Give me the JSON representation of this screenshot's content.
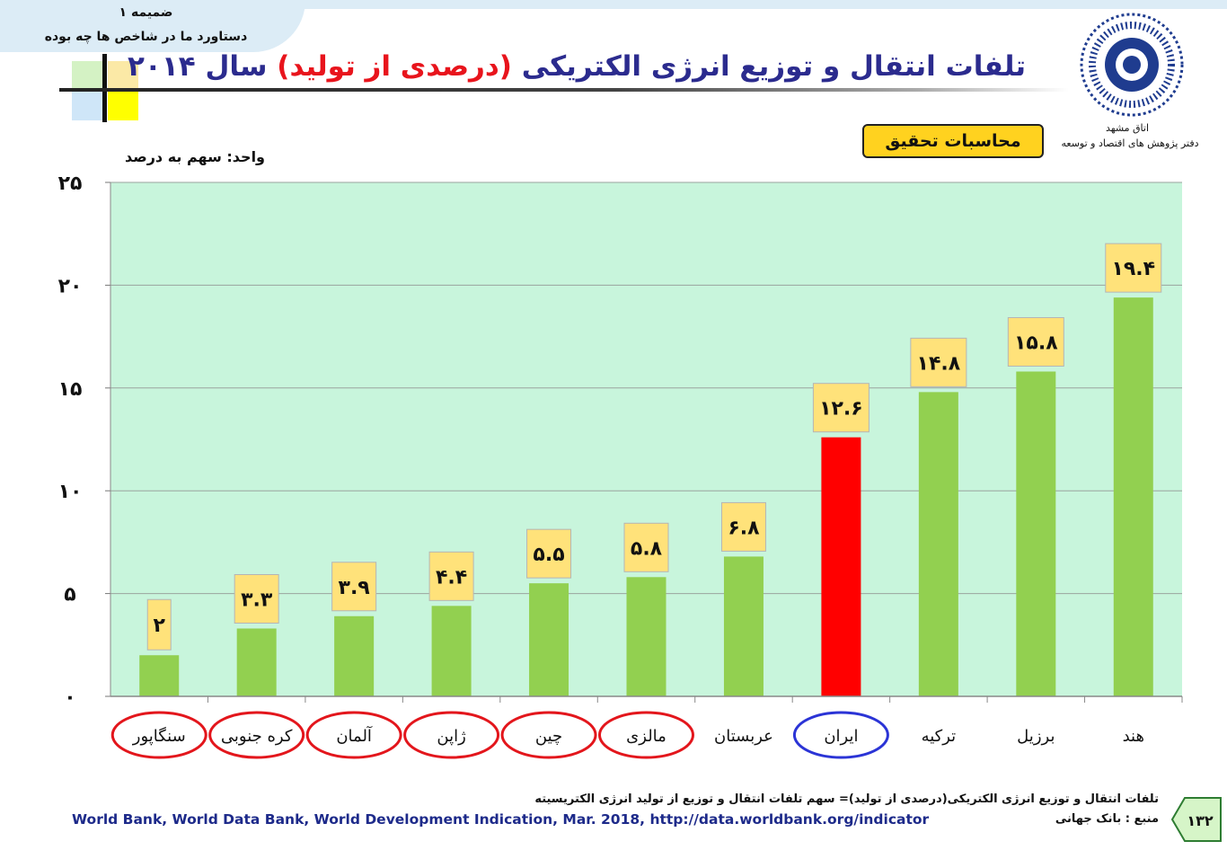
{
  "header": {
    "annex_title": "ضمیمه ۱",
    "annex_subtitle": "دستاورد ما در شاخص ها چه بوده",
    "title_parts": [
      {
        "text": "تلفات انتقال و توزیع انرژی الکتریکی ",
        "color": "#2b2b8e"
      },
      {
        "text": "(درصدی از تولید)",
        "color": "#e8141c"
      },
      {
        "text": " سال ۲۰۱۴",
        "color": "#2b2b8e"
      }
    ],
    "org_name": "اتاق مشهد",
    "org_dept": "دفتر پژوهش های اقتصاد و توسعه",
    "calc_badge": "محاسبات تحقیق"
  },
  "chart_data": {
    "type": "bar",
    "unit_label": "واحد: سهم به درصد",
    "categories": [
      "سنگاپور",
      "کره جنوبی",
      "آلمان",
      "ژاپن",
      "چین",
      "مالزی",
      "عربستان",
      "ایران",
      "ترکیه",
      "برزیل",
      "هند"
    ],
    "values": [
      2,
      3.3,
      3.9,
      4.4,
      5.5,
      5.8,
      6.8,
      12.6,
      14.8,
      15.8,
      19.4
    ],
    "value_labels": [
      "۲",
      "۳.۳",
      "۳.۹",
      "۴.۴",
      "۵.۵",
      "۵.۸",
      "۶.۸",
      "۱۲.۶",
      "۱۴.۸",
      "۱۵.۸",
      "۱۹.۴"
    ],
    "bar_colors": [
      "#92d050",
      "#92d050",
      "#92d050",
      "#92d050",
      "#92d050",
      "#92d050",
      "#92d050",
      "#ff0000",
      "#92d050",
      "#92d050",
      "#92d050"
    ],
    "category_circles": [
      "red",
      "red",
      "red",
      "red",
      "red",
      "red",
      "none",
      "blue",
      "none",
      "none",
      "none"
    ],
    "yticks": [
      0,
      5,
      10,
      15,
      20,
      25
    ],
    "ytick_labels": [
      "۰",
      "۵",
      "۱۰",
      "۱۵",
      "۲۰",
      "۲۵"
    ],
    "ylim": [
      0,
      25
    ],
    "grid": true,
    "colors": {
      "bar": "#92d050",
      "highlight": "#ff0000",
      "label_box": "#ffe27a",
      "plot_background": "#c8f5dc",
      "circle_red": "#e3161c",
      "circle_blue": "#2b34d6"
    }
  },
  "footer": {
    "definition": "تلفات انتقال و توزیع انرژی الکتریکی(درصدی از تولید)=  سهم تلفات انتقال و توزیع از تولید انرژی الکتریسیته",
    "source_url": "World Bank, World Data Bank, World Development Indication, Mar. 2018, http://data.worldbank.org/indicator",
    "source_label": "منبع : بانک جهانی",
    "page_number": "۱۳۲"
  }
}
